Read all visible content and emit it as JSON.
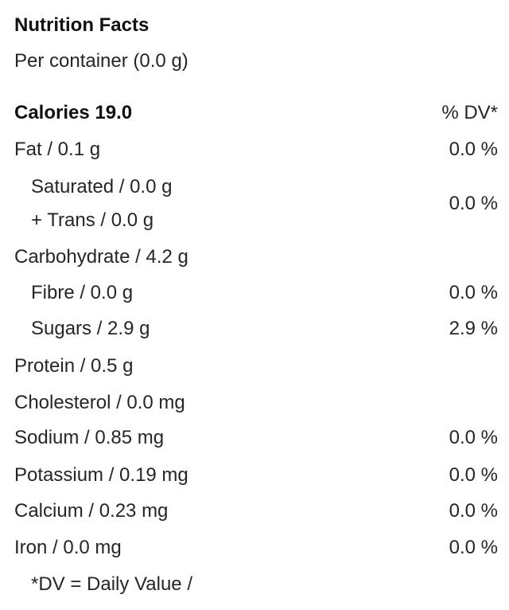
{
  "title": "Nutrition Facts",
  "serving": "Per container (0.0 g)",
  "calories": "Calories 19.0",
  "dv_header": "% DV*",
  "rows": [
    {
      "label": "Fat / 0.1 g",
      "dv": "0.0 %"
    },
    {
      "label": "Saturated / 0.0 g",
      "label2": "+ Trans / 0.0 g",
      "dv": "0.0 %"
    },
    {
      "label": "Carbohydrate / 4.2 g"
    },
    {
      "label": "Fibre / 0.0 g",
      "dv": "0.0 %"
    },
    {
      "label": "Sugars / 2.9 g",
      "dv": "2.9 %"
    },
    {
      "label": "Protein / 0.5 g"
    },
    {
      "label": "Cholesterol / 0.0 mg"
    },
    {
      "label": "Sodium / 0.85 mg",
      "dv": "0.0 %"
    },
    {
      "label": "Potassium / 0.19 mg",
      "dv": "0.0 %"
    },
    {
      "label": "Calcium / 0.23 mg",
      "dv": "0.0 %"
    },
    {
      "label": "Iron / 0.0 mg",
      "dv": "0.0 %"
    }
  ],
  "footnote": "*DV = Daily Value /"
}
